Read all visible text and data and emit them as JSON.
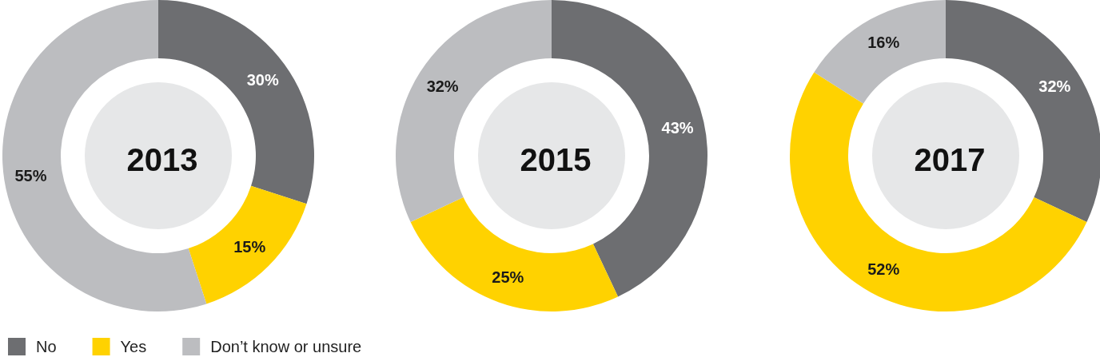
{
  "chart_data": [
    {
      "type": "donut",
      "title": "2013",
      "categories": [
        "No",
        "Yes",
        "Don’t know or unsure"
      ],
      "values": [
        30,
        15,
        55
      ],
      "value_labels": [
        "30%",
        "15%",
        "55%"
      ],
      "colors": [
        "#6d6e71",
        "#ffd200",
        "#bcbdc0"
      ],
      "legend": "bottom"
    },
    {
      "type": "donut",
      "title": "2015",
      "categories": [
        null,
        null,
        null
      ],
      "values": [
        43,
        25,
        32
      ],
      "value_labels": [
        "43%",
        "25%",
        "32%"
      ],
      "colors": [
        "#6d6e71",
        "#ffd200",
        "#bcbdc0"
      ]
    },
    {
      "type": "donut",
      "title": "2017",
      "categories": [
        null,
        null,
        null
      ],
      "values": [
        32,
        52,
        16
      ],
      "value_labels": [
        "32%",
        "52%",
        "16%"
      ],
      "colors": [
        "#6d6e71",
        "#ffd200",
        "#bcbdc0"
      ]
    }
  ]
}
